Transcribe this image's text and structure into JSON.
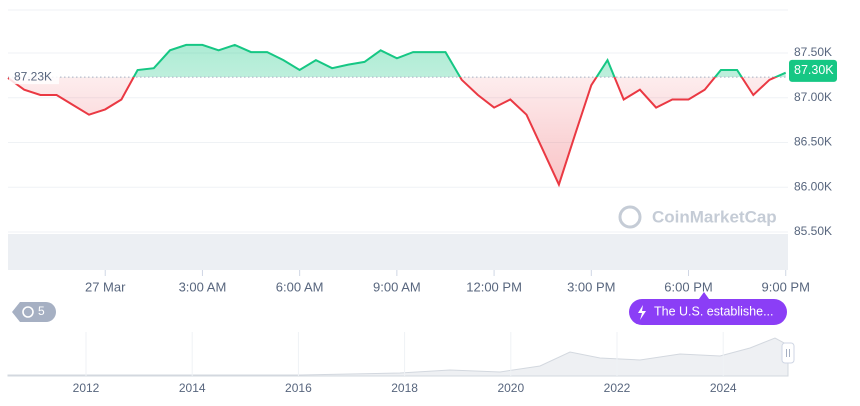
{
  "chart_data": {
    "type": "line",
    "x": [
      -3,
      -2.5,
      -2,
      -1.5,
      -1,
      -0.5,
      0,
      0.5,
      1,
      1.5,
      2,
      2.5,
      3,
      3.5,
      4,
      4.5,
      5,
      5.5,
      6,
      6.5,
      7,
      7.5,
      8,
      8.5,
      9,
      9.5,
      10,
      10.5,
      11,
      11.5,
      12,
      12.5,
      13,
      13.5,
      14,
      14.5,
      15,
      15.5,
      16,
      16.5,
      17,
      17.5,
      18,
      18.5,
      19,
      19.5,
      20,
      20.5,
      21
    ],
    "values": [
      87220,
      87090,
      87030,
      87030,
      86920,
      86810,
      86870,
      86980,
      87310,
      87330,
      87530,
      87590,
      87590,
      87530,
      87590,
      87510,
      87510,
      87420,
      87310,
      87420,
      87330,
      87370,
      87400,
      87530,
      87440,
      87510,
      87510,
      87510,
      87200,
      87030,
      86890,
      86980,
      86810,
      86420,
      86030,
      86590,
      87140,
      87420,
      86980,
      87090,
      86890,
      86980,
      86980,
      87090,
      87310,
      87310,
      87030,
      87200,
      87280
    ],
    "xlim": [
      -3,
      21.07
    ],
    "xticks": [
      {
        "value": 0,
        "label": "27 Mar"
      },
      {
        "value": 3,
        "label": "3:00 AM"
      },
      {
        "value": 6,
        "label": "6:00 AM"
      },
      {
        "value": 9,
        "label": "9:00 AM"
      },
      {
        "value": 12,
        "label": "12:00 PM"
      },
      {
        "value": 15,
        "label": "3:00 PM"
      },
      {
        "value": 18,
        "label": "6:00 PM"
      },
      {
        "value": 21,
        "label": "9:00 PM"
      }
    ],
    "ylim": [
      85500,
      87980
    ],
    "yticks": [
      {
        "value": 85500,
        "label": "85.50K"
      },
      {
        "value": 86000,
        "label": "86.00K"
      },
      {
        "value": 86500,
        "label": "86.50K"
      },
      {
        "value": 87000,
        "label": "87.00K"
      },
      {
        "value": 87500,
        "label": "87.50K"
      }
    ],
    "grid": true,
    "baseline": {
      "value": 87230,
      "label": "87.23K"
    },
    "current": {
      "value": 87300,
      "label": "87.30K"
    },
    "up_color": "#16c784",
    "down_color": "#ea3943",
    "watermark": "CoinMarketCap",
    "overview_years": [
      "2012",
      "2014",
      "2016",
      "2018",
      "2020",
      "2022",
      "2024"
    ],
    "history_button": "5",
    "news": "The U.S. establishe..."
  }
}
